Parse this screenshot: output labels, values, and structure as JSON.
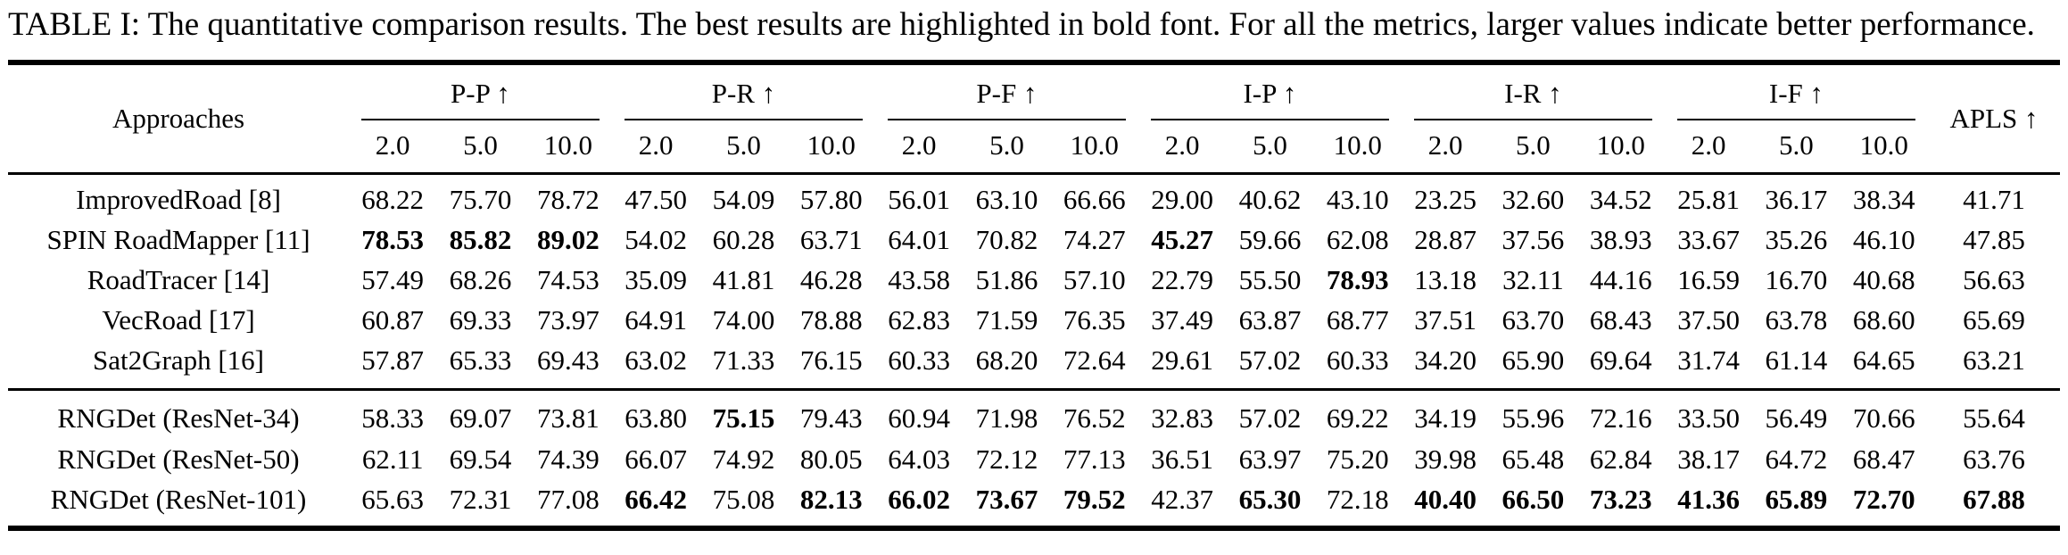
{
  "caption": "TABLE I: The quantitative comparison results. The best results are highlighted in bold font. For all the metrics, larger values indicate better performance.",
  "table": {
    "approaches_header": "Approaches",
    "apls_header": "APLS ↑",
    "groups": [
      "P-P ↑",
      "P-R ↑",
      "P-F ↑",
      "I-P ↑",
      "I-R ↑",
      "I-F ↑"
    ],
    "thresholds": [
      "2.0",
      "5.0",
      "10.0"
    ],
    "sections": [
      {
        "rows": [
          {
            "name": "ImprovedRoad [8]",
            "values": [
              "68.22",
              "75.70",
              "78.72",
              "47.50",
              "54.09",
              "57.80",
              "56.01",
              "63.10",
              "66.66",
              "29.00",
              "40.62",
              "43.10",
              "23.25",
              "32.60",
              "34.52",
              "25.81",
              "36.17",
              "38.34",
              "41.71"
            ],
            "bold": []
          },
          {
            "name": "SPIN RoadMapper [11]",
            "values": [
              "78.53",
              "85.82",
              "89.02",
              "54.02",
              "60.28",
              "63.71",
              "64.01",
              "70.82",
              "74.27",
              "45.27",
              "59.66",
              "62.08",
              "28.87",
              "37.56",
              "38.93",
              "33.67",
              "35.26",
              "46.10",
              "47.85"
            ],
            "bold": [
              0,
              1,
              2,
              9
            ]
          },
          {
            "name": "RoadTracer [14]",
            "values": [
              "57.49",
              "68.26",
              "74.53",
              "35.09",
              "41.81",
              "46.28",
              "43.58",
              "51.86",
              "57.10",
              "22.79",
              "55.50",
              "78.93",
              "13.18",
              "32.11",
              "44.16",
              "16.59",
              "16.70",
              "40.68",
              "56.63"
            ],
            "bold": [
              11
            ]
          },
          {
            "name": "VecRoad [17]",
            "values": [
              "60.87",
              "69.33",
              "73.97",
              "64.91",
              "74.00",
              "78.88",
              "62.83",
              "71.59",
              "76.35",
              "37.49",
              "63.87",
              "68.77",
              "37.51",
              "63.70",
              "68.43",
              "37.50",
              "63.78",
              "68.60",
              "65.69"
            ],
            "bold": []
          },
          {
            "name": "Sat2Graph [16]",
            "values": [
              "57.87",
              "65.33",
              "69.43",
              "63.02",
              "71.33",
              "76.15",
              "60.33",
              "68.20",
              "72.64",
              "29.61",
              "57.02",
              "60.33",
              "34.20",
              "65.90",
              "69.64",
              "31.74",
              "61.14",
              "64.65",
              "63.21"
            ],
            "bold": []
          }
        ]
      },
      {
        "rows": [
          {
            "name": "RNGDet (ResNet-34)",
            "values": [
              "58.33",
              "69.07",
              "73.81",
              "63.80",
              "75.15",
              "79.43",
              "60.94",
              "71.98",
              "76.52",
              "32.83",
              "57.02",
              "69.22",
              "34.19",
              "55.96",
              "72.16",
              "33.50",
              "56.49",
              "70.66",
              "55.64"
            ],
            "bold": [
              4
            ]
          },
          {
            "name": "RNGDet (ResNet-50)",
            "values": [
              "62.11",
              "69.54",
              "74.39",
              "66.07",
              "74.92",
              "80.05",
              "64.03",
              "72.12",
              "77.13",
              "36.51",
              "63.97",
              "75.20",
              "39.98",
              "65.48",
              "62.84",
              "38.17",
              "64.72",
              "68.47",
              "63.76"
            ],
            "bold": []
          },
          {
            "name": "RNGDet (ResNet-101)",
            "values": [
              "65.63",
              "72.31",
              "77.08",
              "66.42",
              "75.08",
              "82.13",
              "66.02",
              "73.67",
              "79.52",
              "42.37",
              "65.30",
              "72.18",
              "40.40",
              "66.50",
              "73.23",
              "41.36",
              "65.89",
              "72.70",
              "67.88"
            ],
            "bold": [
              3,
              5,
              6,
              7,
              8,
              10,
              12,
              13,
              14,
              15,
              16,
              17,
              18
            ]
          }
        ]
      }
    ]
  }
}
